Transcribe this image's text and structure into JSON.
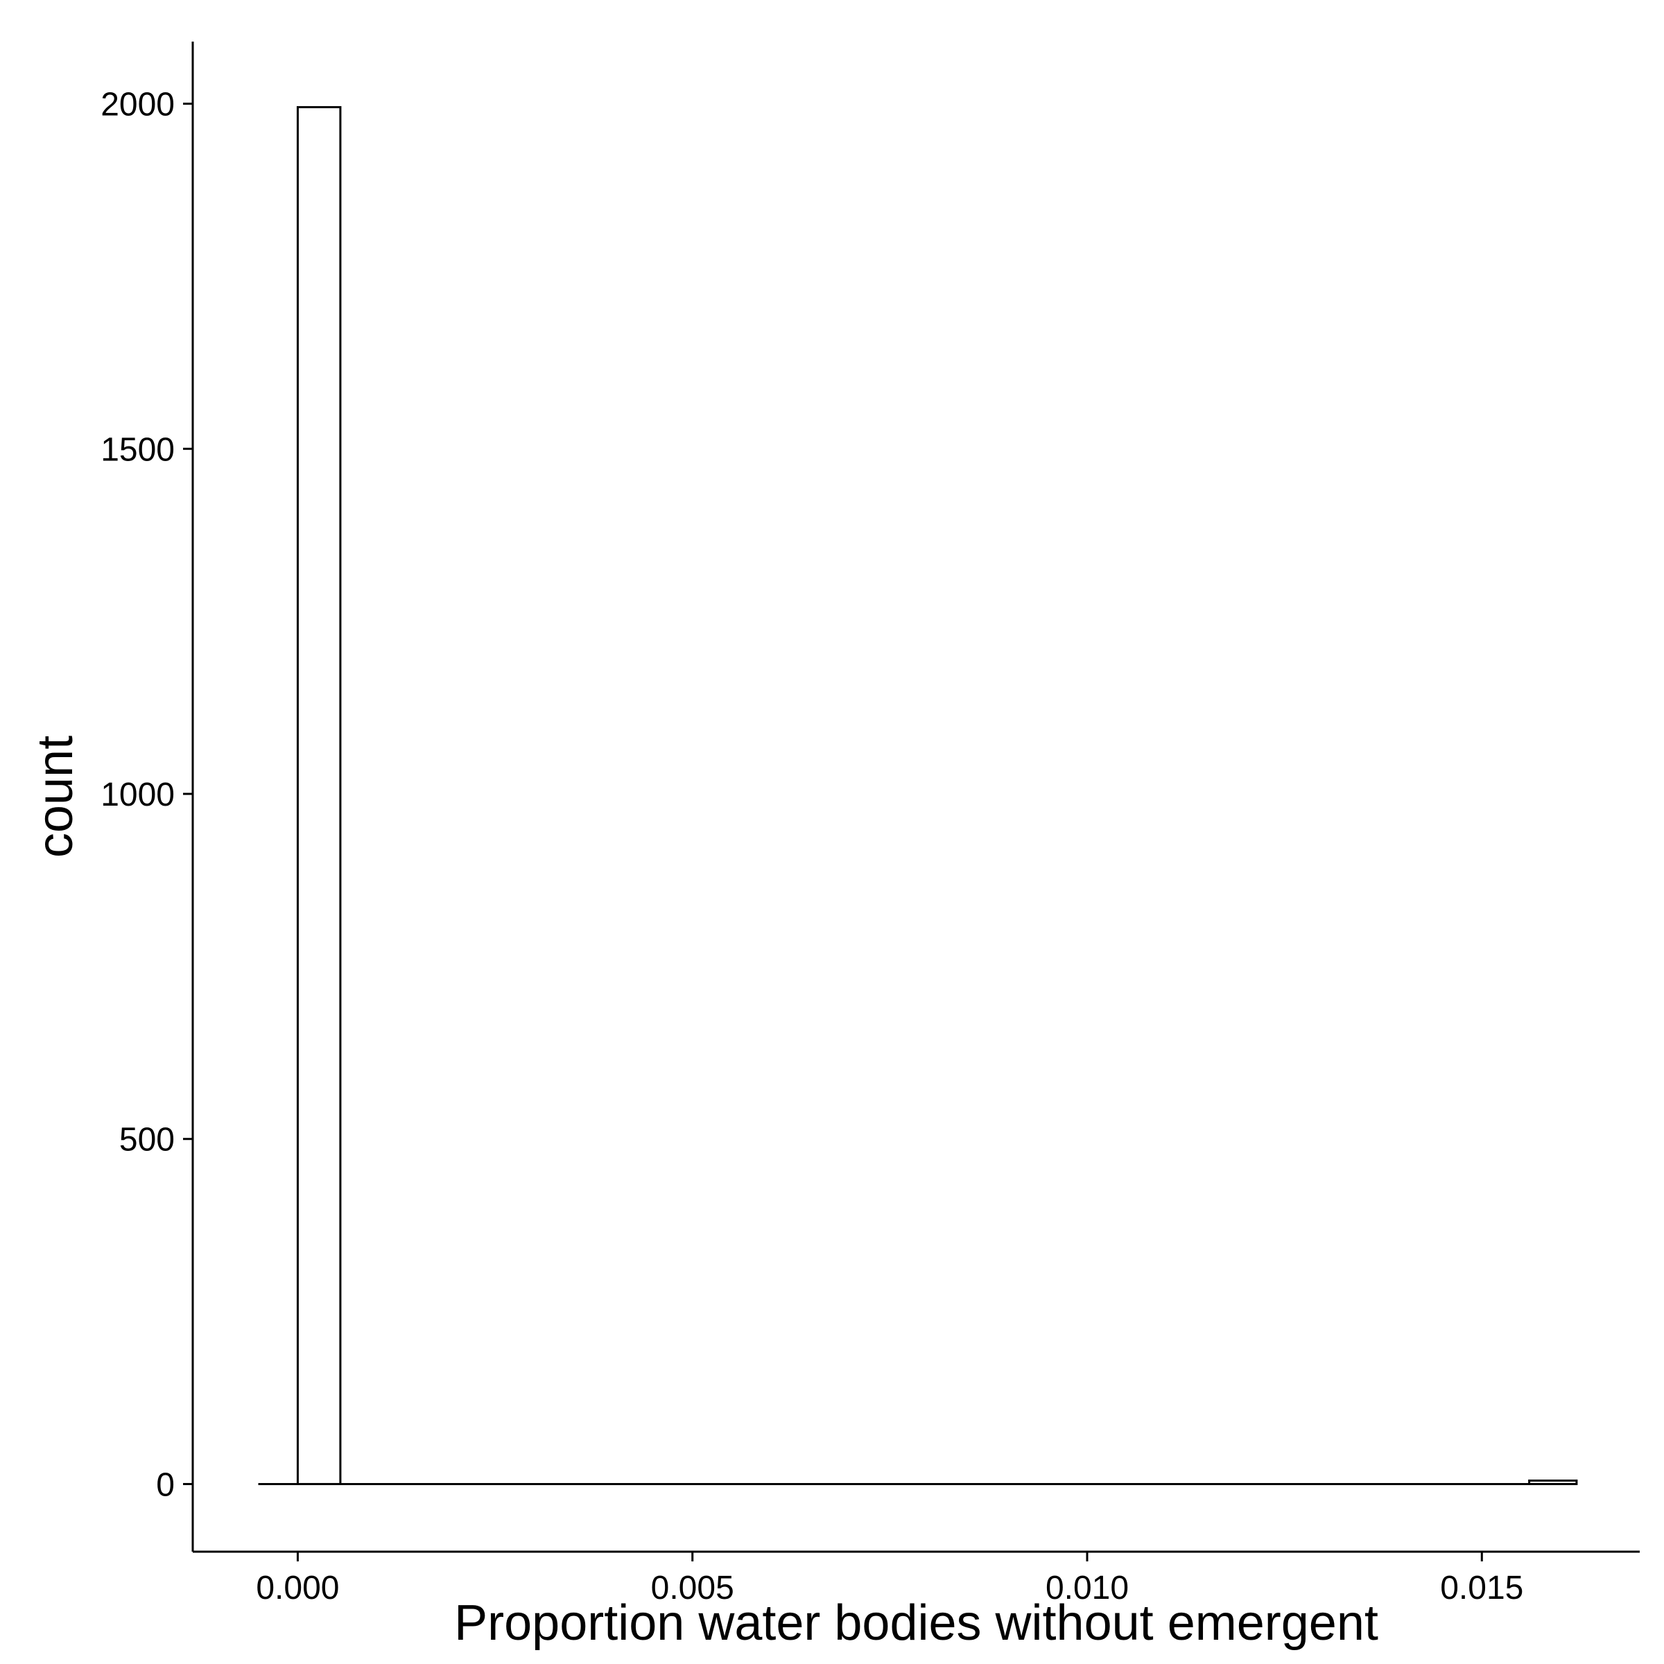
{
  "chart_data": {
    "type": "histogram",
    "xlabel": "Proportion water bodies without emergent",
    "ylabel": "count",
    "xlim": [
      -0.00133,
      0.017
    ],
    "ylim": [
      -98,
      2090
    ],
    "x_ticks": [
      {
        "value": 0.0,
        "label": "0.000"
      },
      {
        "value": 0.005,
        "label": "0.005"
      },
      {
        "value": 0.01,
        "label": "0.010"
      },
      {
        "value": 0.015,
        "label": "0.015"
      }
    ],
    "y_ticks": [
      {
        "value": 0,
        "label": "0"
      },
      {
        "value": 500,
        "label": "500"
      },
      {
        "value": 1000,
        "label": "1000"
      },
      {
        "value": 1500,
        "label": "1500"
      },
      {
        "value": 2000,
        "label": "2000"
      }
    ],
    "bins": [
      {
        "x0": 0.0,
        "x1": 0.00054,
        "count": 1995
      },
      {
        "x0": 0.0156,
        "x1": 0.0162,
        "count": 5
      }
    ],
    "baseline": {
      "x0": -0.0005,
      "x1": 0.0162
    },
    "fill_color": "#ffffff",
    "stroke_color": "#000000",
    "grid": false,
    "legend": "none"
  }
}
